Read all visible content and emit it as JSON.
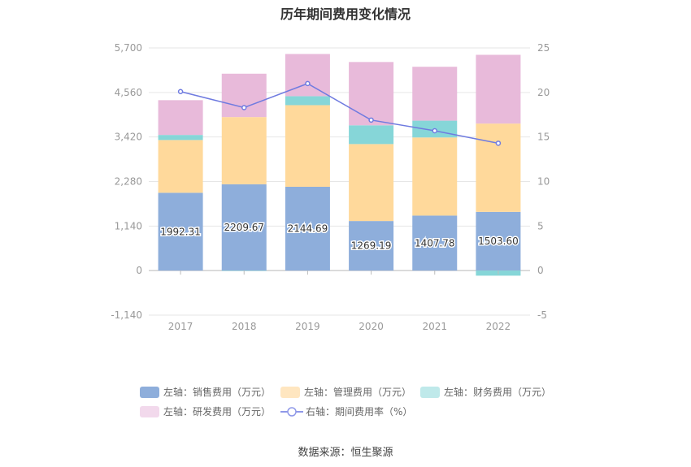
{
  "chart_data": {
    "type": "bar",
    "title": "历年期间费用变化情况",
    "categories": [
      "2017",
      "2018",
      "2019",
      "2020",
      "2021",
      "2022"
    ],
    "left_axis": {
      "ticks": [
        "5,700",
        "4,560",
        "3,420",
        "2,280",
        "1,140",
        "0",
        "-1,140"
      ],
      "range": [
        -1140,
        5700
      ]
    },
    "right_axis": {
      "ticks": [
        "25",
        "20",
        "15",
        "10",
        "5",
        "0",
        "-5"
      ],
      "range": [
        -5,
        25
      ]
    },
    "series": [
      {
        "name": "左轴：销售费用（万元）",
        "kind": "bar",
        "color": "#8eaedb",
        "values": [
          1992.31,
          2209.67,
          2144.69,
          1269.19,
          1407.78,
          1503.6
        ],
        "labels": [
          "1992.31",
          "2209.67",
          "2144.69",
          "1269.19",
          "1407.78",
          "1503.60"
        ]
      },
      {
        "name": "左轴：管理费用（万元）",
        "kind": "bar",
        "color": "#ffd99b",
        "values": [
          1350,
          1720,
          2090,
          1970,
          2000,
          2260
        ]
      },
      {
        "name": "左轴：财务费用（万元）",
        "kind": "bar",
        "color": "#86d6d8",
        "values": [
          130,
          -10,
          230,
          480,
          430,
          -130
        ]
      },
      {
        "name": "左轴：研发费用（万元）",
        "kind": "bar",
        "color": "#e8bada",
        "values": [
          890,
          1110,
          1080,
          1620,
          1380,
          1760
        ]
      },
      {
        "name": "右轴：期间费用率（%）",
        "kind": "line",
        "color": "#6f7be0",
        "values": [
          20.1,
          18.3,
          21.0,
          16.9,
          15.7,
          14.3
        ]
      }
    ],
    "legend": [
      {
        "label": "左轴：销售费用（万元）",
        "color": "#8eaedb",
        "type": "bar"
      },
      {
        "label": "左轴：管理费用（万元）",
        "color": "#ffe6c0",
        "type": "bar"
      },
      {
        "label": "左轴：财务费用（万元）",
        "color": "#bfe9ea",
        "type": "bar"
      },
      {
        "label": "左轴：研发费用（万元）",
        "color": "#f2d9ec",
        "type": "bar"
      },
      {
        "label": "右轴：期间费用率（%）",
        "color": "#8f98e8",
        "type": "line"
      }
    ]
  },
  "footer": {
    "source": "数据来源：恒生聚源"
  }
}
